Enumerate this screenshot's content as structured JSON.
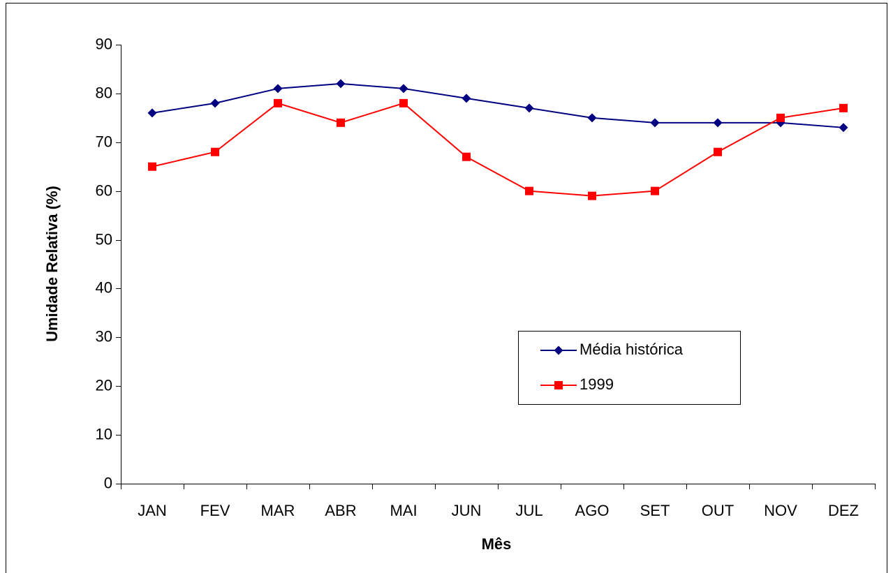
{
  "chart_data": {
    "type": "line",
    "x_label": "Mês",
    "y_label": "Umidade Relativa (%)",
    "categories": [
      "JAN",
      "FEV",
      "MAR",
      "ABR",
      "MAI",
      "JUN",
      "JUL",
      "AGO",
      "SET",
      "OUT",
      "NOV",
      "DEZ"
    ],
    "series": [
      {
        "name": "Média histórica",
        "color": "#000080",
        "marker": "diamond",
        "values": [
          76,
          78,
          81,
          82,
          81,
          79,
          77,
          75,
          74,
          74,
          74,
          73
        ]
      },
      {
        "name": "1999",
        "color": "#ff0000",
        "marker": "square",
        "values": [
          65,
          68,
          78,
          74,
          78,
          67,
          60,
          59,
          60,
          68,
          75,
          77
        ]
      }
    ],
    "ylim": [
      0,
      90
    ],
    "yticks": [
      0,
      10,
      20,
      30,
      40,
      50,
      60,
      70,
      80,
      90
    ],
    "grid": false,
    "legend_position": "center right"
  }
}
